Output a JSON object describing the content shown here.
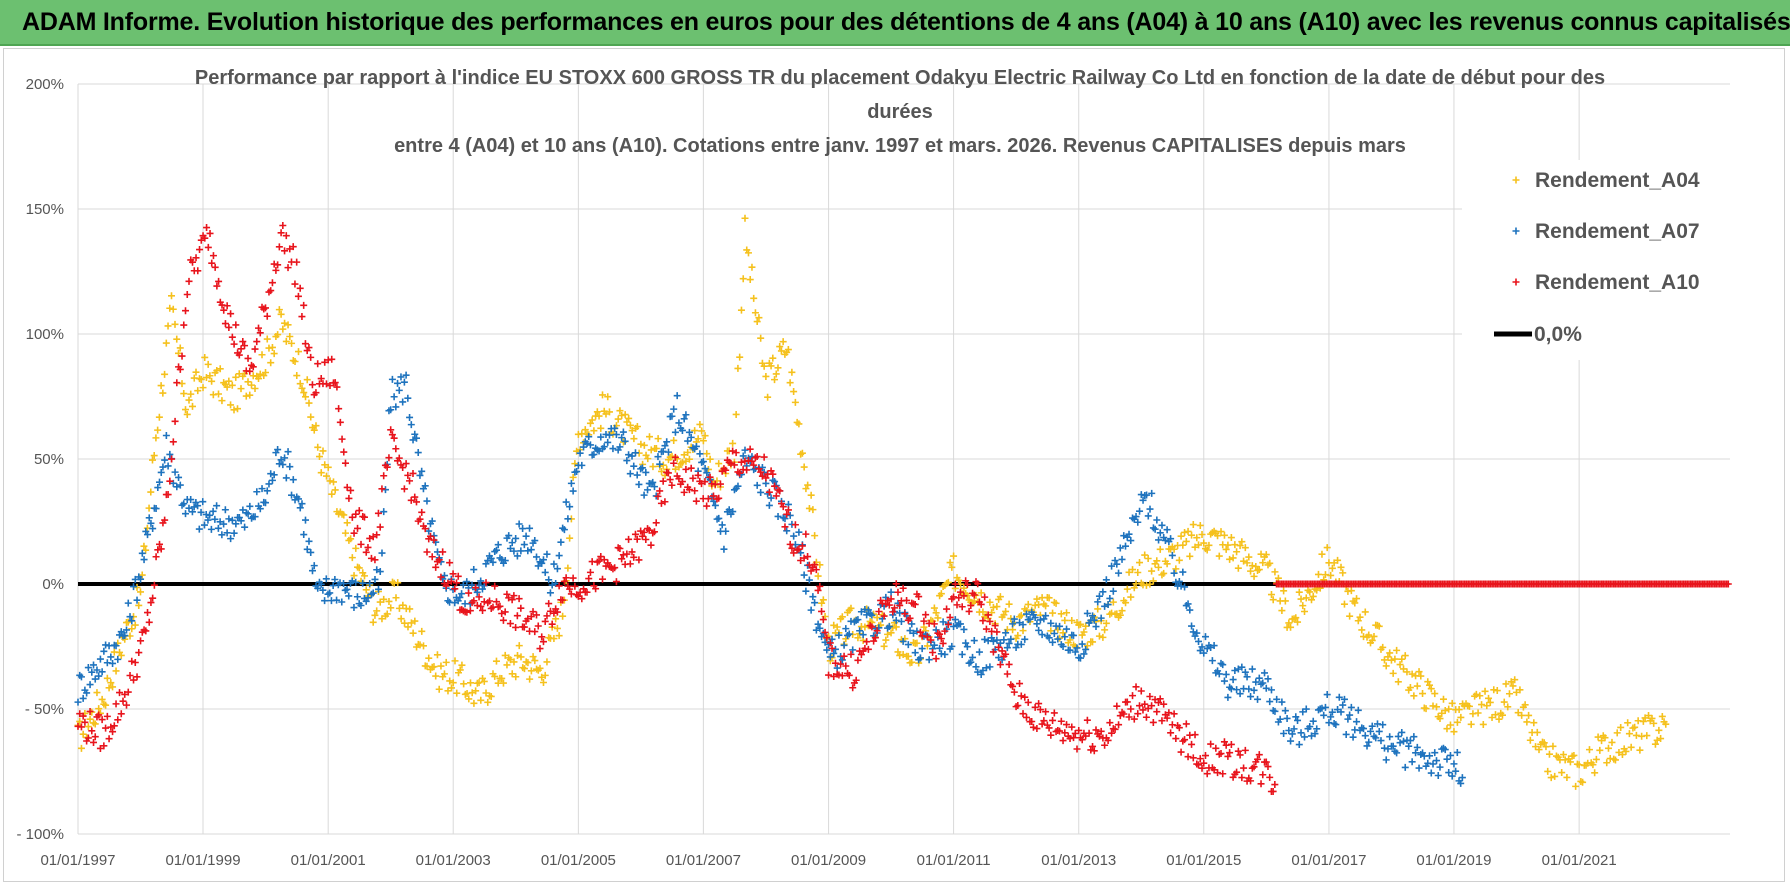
{
  "header": {
    "title": "ADAM Informe. Evolution historique des performances en euros pour des détentions de 4 ans (A04) à 10 ans (A10) avec les revenus connus capitalisés"
  },
  "colors": {
    "banner": "#6cc070",
    "A04": "#f5c11d",
    "A07": "#1e73be",
    "A10": "#e8141c",
    "zero": "#000000"
  },
  "chart_data": {
    "type": "scatter",
    "title_lines": [
      "Performance par rapport à l'indice EU STOXX 600 GROSS TR  du placement Odakyu Electric Railway Co Ltd en fonction de la date de début pour des",
      "durées",
      "entre 4 (A04) et 10 ans (A10).  Cotations entre janv. 1997 et mars. 2026. Revenus CAPITALISES depuis mars"
    ],
    "xlim": [
      "1997-01-01",
      "2023-06-01"
    ],
    "ylim": [
      -100,
      200
    ],
    "x_ticks": [
      "01/01/1997",
      "01/01/1999",
      "01/01/2001",
      "01/01/2003",
      "01/01/2005",
      "01/01/2007",
      "01/01/2009",
      "01/01/2011",
      "01/01/2013",
      "01/01/2015",
      "01/01/2017",
      "01/01/2019",
      "01/01/2021"
    ],
    "y_ticks": [
      {
        "value": 200,
        "label": "200%"
      },
      {
        "value": 150,
        "label": "150%"
      },
      {
        "value": 100,
        "label": "100%"
      },
      {
        "value": 50,
        "label": "50%"
      },
      {
        "value": 0,
        "label": "0%"
      },
      {
        "value": -50,
        "label": "- 50%"
      },
      {
        "value": -100,
        "label": "- 100%"
      }
    ],
    "grid": true,
    "legend_position": "right",
    "legend": [
      "Rendement_A04",
      "Rendement_A07",
      "Rendement_A10",
      "0,0%"
    ],
    "marker": "+",
    "series": [
      {
        "name": "Rendement_A04",
        "color": "#f5c11d",
        "points": [
          [
            "1997-01-01",
            -62
          ],
          [
            "1997-06-01",
            -45
          ],
          [
            "1997-10-01",
            -20
          ],
          [
            "1998-01-01",
            -5
          ],
          [
            "1998-04-01",
            60
          ],
          [
            "1998-07-01",
            110
          ],
          [
            "1998-10-01",
            70
          ],
          [
            "1999-01-01",
            85
          ],
          [
            "1999-07-01",
            75
          ],
          [
            "2000-01-01",
            90
          ],
          [
            "2000-04-01",
            105
          ],
          [
            "2000-08-01",
            85
          ],
          [
            "2000-11-01",
            55
          ],
          [
            "2001-02-01",
            35
          ],
          [
            "2001-06-01",
            10
          ],
          [
            "2001-10-01",
            -10
          ],
          [
            "2002-02-01",
            -5
          ],
          [
            "2002-06-01",
            -20
          ],
          [
            "2002-10-01",
            -35
          ],
          [
            "2003-02-01",
            -38
          ],
          [
            "2003-06-01",
            -45
          ],
          [
            "2003-10-01",
            -35
          ],
          [
            "2004-02-01",
            -30
          ],
          [
            "2004-06-01",
            -35
          ],
          [
            "2004-10-01",
            -10
          ],
          [
            "2005-01-01",
            60
          ],
          [
            "2005-06-01",
            70
          ],
          [
            "2006-01-01",
            55
          ],
          [
            "2006-06-01",
            50
          ],
          [
            "2007-01-01",
            60
          ],
          [
            "2007-03-01",
            40
          ],
          [
            "2007-07-01",
            55
          ],
          [
            "2007-09-01",
            140
          ],
          [
            "2008-01-01",
            80
          ],
          [
            "2008-05-01",
            95
          ],
          [
            "2008-09-01",
            40
          ],
          [
            "2009-01-01",
            -25
          ],
          [
            "2009-06-01",
            -15
          ],
          [
            "2010-01-01",
            -20
          ],
          [
            "2010-06-01",
            -30
          ],
          [
            "2011-01-01",
            5
          ],
          [
            "2011-06-01",
            -5
          ],
          [
            "2012-01-01",
            -15
          ],
          [
            "2012-06-01",
            -10
          ],
          [
            "2013-01-01",
            -20
          ],
          [
            "2013-06-01",
            -15
          ],
          [
            "2014-01-01",
            5
          ],
          [
            "2014-06-01",
            10
          ],
          [
            "2015-01-01",
            20
          ],
          [
            "2015-06-01",
            15
          ],
          [
            "2016-01-01",
            5
          ],
          [
            "2016-06-01",
            -15
          ],
          [
            "2017-01-01",
            10
          ],
          [
            "2017-06-01",
            -10
          ],
          [
            "2018-01-01",
            -30
          ],
          [
            "2018-06-01",
            -40
          ],
          [
            "2019-01-01",
            -55
          ],
          [
            "2019-06-01",
            -50
          ],
          [
            "2020-01-01",
            -45
          ],
          [
            "2020-06-01",
            -70
          ],
          [
            "2021-01-01",
            -75
          ],
          [
            "2021-06-01",
            -65
          ],
          [
            "2022-01-01",
            -60
          ],
          [
            "2022-06-01",
            -57
          ]
        ]
      },
      {
        "name": "Rendement_A07",
        "color": "#1e73be",
        "points": [
          [
            "1997-01-01",
            -42
          ],
          [
            "1997-06-01",
            -30
          ],
          [
            "1997-10-01",
            -20
          ],
          [
            "1998-02-01",
            15
          ],
          [
            "1998-06-01",
            55
          ],
          [
            "1998-10-01",
            30
          ],
          [
            "1999-03-01",
            25
          ],
          [
            "1999-09-01",
            25
          ],
          [
            "2000-01-01",
            35
          ],
          [
            "2000-04-01",
            55
          ],
          [
            "2000-08-01",
            30
          ],
          [
            "2000-11-01",
            -5
          ],
          [
            "2001-03-01",
            0
          ],
          [
            "2001-07-01",
            -5
          ],
          [
            "2001-11-01",
            0
          ],
          [
            "2002-01-01",
            75
          ],
          [
            "2002-04-01",
            80
          ],
          [
            "2002-07-01",
            40
          ],
          [
            "2002-11-01",
            0
          ],
          [
            "2003-03-01",
            -5
          ],
          [
            "2003-07-01",
            5
          ],
          [
            "2003-11-01",
            15
          ],
          [
            "2004-04-01",
            20
          ],
          [
            "2004-08-01",
            0
          ],
          [
            "2005-01-01",
            50
          ],
          [
            "2005-06-01",
            60
          ],
          [
            "2005-10-01",
            55
          ],
          [
            "2006-03-01",
            35
          ],
          [
            "2006-08-01",
            70
          ],
          [
            "2007-01-01",
            45
          ],
          [
            "2007-05-01",
            20
          ],
          [
            "2007-09-01",
            50
          ],
          [
            "2008-01-01",
            40
          ],
          [
            "2008-06-01",
            25
          ],
          [
            "2009-01-01",
            -30
          ],
          [
            "2009-06-01",
            -20
          ],
          [
            "2010-01-01",
            -10
          ],
          [
            "2010-06-01",
            -25
          ],
          [
            "2011-01-01",
            -20
          ],
          [
            "2011-06-01",
            -30
          ],
          [
            "2012-01-01",
            -20
          ],
          [
            "2012-06-01",
            -15
          ],
          [
            "2013-01-01",
            -25
          ],
          [
            "2013-06-01",
            -5
          ],
          [
            "2013-10-01",
            15
          ],
          [
            "2014-02-01",
            35
          ],
          [
            "2014-06-01",
            15
          ],
          [
            "2015-01-01",
            -25
          ],
          [
            "2015-06-01",
            -40
          ],
          [
            "2016-01-01",
            -40
          ],
          [
            "2016-06-01",
            -60
          ],
          [
            "2017-01-01",
            -50
          ],
          [
            "2017-06-01",
            -55
          ],
          [
            "2018-01-01",
            -65
          ],
          [
            "2018-06-01",
            -68
          ],
          [
            "2019-01-01",
            -73
          ],
          [
            "2019-03-01",
            -77
          ]
        ]
      },
      {
        "name": "Rendement_A10",
        "color": "#e8141c",
        "points": [
          [
            "1997-01-01",
            -55
          ],
          [
            "1997-06-01",
            -60
          ],
          [
            "1997-10-01",
            -45
          ],
          [
            "1998-02-01",
            -20
          ],
          [
            "1998-06-01",
            30
          ],
          [
            "1998-10-01",
            120
          ],
          [
            "1999-02-01",
            140
          ],
          [
            "1999-06-01",
            105
          ],
          [
            "1999-10-01",
            85
          ],
          [
            "2000-01-01",
            110
          ],
          [
            "2000-04-01",
            140
          ],
          [
            "2000-07-01",
            125
          ],
          [
            "2000-10-01",
            80
          ],
          [
            "2001-02-01",
            85
          ],
          [
            "2001-06-01",
            25
          ],
          [
            "2001-10-01",
            15
          ],
          [
            "2002-01-01",
            55
          ],
          [
            "2002-05-01",
            40
          ],
          [
            "2002-08-01",
            15
          ],
          [
            "2002-12-01",
            5
          ],
          [
            "2003-04-01",
            -10
          ],
          [
            "2003-08-01",
            -5
          ],
          [
            "2003-12-01",
            -10
          ],
          [
            "2004-06-01",
            -20
          ],
          [
            "2004-10-01",
            0
          ],
          [
            "2005-01-01",
            0
          ],
          [
            "2005-06-01",
            5
          ],
          [
            "2005-10-01",
            10
          ],
          [
            "2006-03-01",
            20
          ],
          [
            "2006-07-01",
            45
          ],
          [
            "2006-11-01",
            40
          ],
          [
            "2007-03-01",
            35
          ],
          [
            "2007-07-01",
            50
          ],
          [
            "2008-01-01",
            45
          ],
          [
            "2008-06-01",
            20
          ],
          [
            "2008-10-01",
            10
          ],
          [
            "2009-01-01",
            -30
          ],
          [
            "2009-06-01",
            -35
          ],
          [
            "2010-01-01",
            -5
          ],
          [
            "2010-06-01",
            -10
          ],
          [
            "2010-10-01",
            -25
          ],
          [
            "2011-01-01",
            -5
          ],
          [
            "2011-06-01",
            -5
          ],
          [
            "2012-01-01",
            -45
          ],
          [
            "2012-06-01",
            -55
          ],
          [
            "2013-01-01",
            -60
          ],
          [
            "2013-06-01",
            -60
          ],
          [
            "2014-01-01",
            -45
          ],
          [
            "2014-06-01",
            -55
          ],
          [
            "2015-01-01",
            -70
          ],
          [
            "2015-06-01",
            -70
          ],
          [
            "2016-01-01",
            -75
          ],
          [
            "2016-03-01",
            -80
          ]
        ]
      },
      {
        "name": "Rendement_A10 (0%)",
        "color": "#e8141c",
        "points": [
          [
            "2016-03-01",
            0
          ],
          [
            "2023-06-01",
            0
          ]
        ]
      }
    ]
  }
}
